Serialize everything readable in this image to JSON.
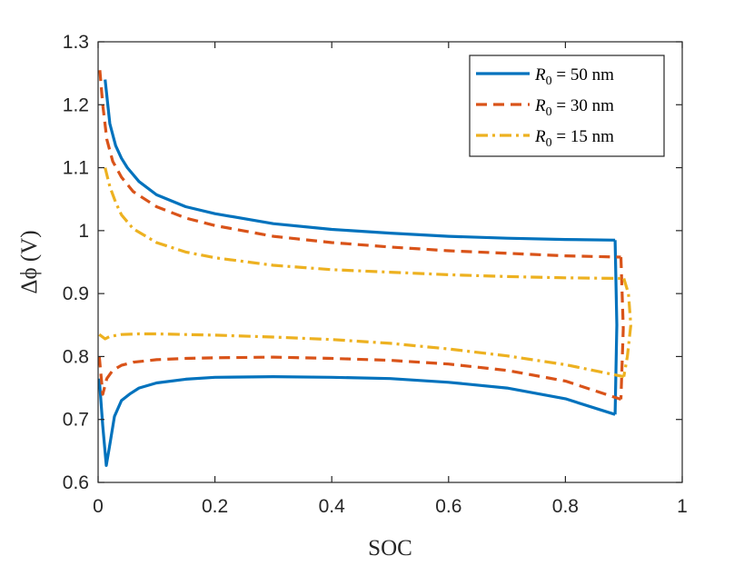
{
  "chart_data": {
    "type": "line",
    "title": "",
    "xlabel": "SOC",
    "ylabel": "Δϕ (V)",
    "xlim": [
      0,
      1
    ],
    "ylim": [
      0.6,
      1.3
    ],
    "grid": false,
    "legend_position": "top-right",
    "x_ticks": [
      0,
      0.2,
      0.4,
      0.6,
      0.8,
      1
    ],
    "x_tick_labels": [
      "0",
      "0.2",
      "0.4",
      "0.6",
      "0.8",
      "1"
    ],
    "y_ticks": [
      0.6,
      0.7,
      0.8,
      0.9,
      1.0,
      1.1,
      1.2,
      1.3
    ],
    "y_tick_labels": [
      "0.6",
      "0.7",
      "0.8",
      "0.9",
      "1",
      "1.1",
      "1.2",
      "1.3"
    ],
    "series": [
      {
        "name": "R0 = 50 nm",
        "legend_var": "R",
        "legend_sub": "0",
        "legend_rest": " = 50 nm",
        "color": "#0072BD",
        "style": "solid",
        "upper": {
          "x": [
            0.012,
            0.02,
            0.03,
            0.04,
            0.05,
            0.07,
            0.1,
            0.15,
            0.2,
            0.3,
            0.4,
            0.5,
            0.6,
            0.7,
            0.8,
            0.885
          ],
          "y": [
            1.24,
            1.17,
            1.135,
            1.115,
            1.1,
            1.078,
            1.057,
            1.038,
            1.027,
            1.011,
            1.002,
            0.996,
            0.991,
            0.988,
            0.986,
            0.985
          ]
        },
        "lower": {
          "x": [
            0.002,
            0.008,
            0.014,
            0.02,
            0.028,
            0.04,
            0.055,
            0.07,
            0.1,
            0.15,
            0.2,
            0.3,
            0.4,
            0.5,
            0.6,
            0.7,
            0.8,
            0.885
          ],
          "y": [
            0.765,
            0.69,
            0.627,
            0.66,
            0.705,
            0.73,
            0.741,
            0.75,
            0.758,
            0.764,
            0.767,
            0.768,
            0.767,
            0.765,
            0.759,
            0.75,
            0.733,
            0.708
          ]
        },
        "edge": {
          "x": [
            0.885,
            0.888,
            0.885
          ],
          "y": [
            0.985,
            0.85,
            0.708
          ]
        }
      },
      {
        "name": "R0 = 30 nm",
        "legend_var": "R",
        "legend_sub": "0",
        "legend_rest": " = 30 nm",
        "color": "#D95319",
        "style": "dashed",
        "upper": {
          "x": [
            0.003,
            0.008,
            0.015,
            0.025,
            0.04,
            0.06,
            0.1,
            0.15,
            0.2,
            0.3,
            0.4,
            0.5,
            0.6,
            0.7,
            0.8,
            0.895
          ],
          "y": [
            1.255,
            1.2,
            1.145,
            1.11,
            1.085,
            1.062,
            1.038,
            1.02,
            1.008,
            0.991,
            0.981,
            0.974,
            0.968,
            0.964,
            0.96,
            0.958
          ]
        },
        "lower": {
          "x": [
            0.002,
            0.008,
            0.015,
            0.025,
            0.04,
            0.06,
            0.1,
            0.15,
            0.2,
            0.3,
            0.4,
            0.5,
            0.6,
            0.7,
            0.8,
            0.895
          ],
          "y": [
            0.8,
            0.74,
            0.765,
            0.778,
            0.786,
            0.791,
            0.795,
            0.797,
            0.798,
            0.799,
            0.797,
            0.794,
            0.788,
            0.778,
            0.761,
            0.732
          ]
        },
        "edge": {
          "x": [
            0.895,
            0.899,
            0.895
          ],
          "y": [
            0.958,
            0.845,
            0.732
          ]
        }
      },
      {
        "name": "R0 = 15 nm",
        "legend_var": "R",
        "legend_sub": "0",
        "legend_rest": " = 15 nm",
        "color": "#EDB120",
        "style": "dashdot",
        "upper": {
          "x": [
            0.012,
            0.02,
            0.03,
            0.04,
            0.06,
            0.1,
            0.15,
            0.2,
            0.3,
            0.4,
            0.5,
            0.6,
            0.7,
            0.8,
            0.9
          ],
          "y": [
            1.1,
            1.07,
            1.045,
            1.025,
            1.003,
            0.981,
            0.966,
            0.957,
            0.945,
            0.938,
            0.934,
            0.93,
            0.927,
            0.925,
            0.924
          ]
        },
        "lower": {
          "x": [
            0.002,
            0.012,
            0.02,
            0.04,
            0.07,
            0.1,
            0.15,
            0.2,
            0.3,
            0.4,
            0.5,
            0.6,
            0.7,
            0.8,
            0.9
          ],
          "y": [
            0.835,
            0.828,
            0.832,
            0.835,
            0.836,
            0.836,
            0.835,
            0.834,
            0.831,
            0.827,
            0.821,
            0.812,
            0.801,
            0.787,
            0.768
          ]
        },
        "edge": {
          "x": [
            0.9,
            0.908,
            0.912,
            0.906,
            0.9
          ],
          "y": [
            0.924,
            0.9,
            0.85,
            0.8,
            0.768
          ]
        }
      }
    ]
  }
}
